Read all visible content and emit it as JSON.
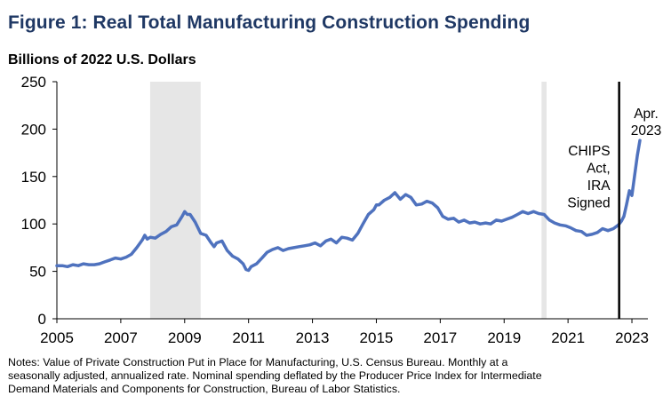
{
  "title": "Figure 1: Real Total Manufacturing Construction Spending",
  "subtitle": "Billions of 2022 U.S. Dollars",
  "notes": [
    "Notes: Value of Private Construction Put in Place for Manufacturing, U.S. Census Bureau. Monthly at a",
    "seasonally adjusted, annualized rate. Nominal spending deflated by the Producer Price Index for Intermediate",
    "Demand Materials and Components for Construction, Bureau of Labor Statistics."
  ],
  "colors": {
    "line": "#4f72be",
    "recession": "#e6e6e6",
    "title": "#1f3864"
  },
  "chart_data": {
    "type": "line",
    "title": "Figure 1: Real Total Manufacturing Construction Spending",
    "ylabel": "Billions of 2022 U.S. Dollars",
    "xlim": [
      2005.0,
      2023.5
    ],
    "ylim": [
      0,
      250
    ],
    "yticks": [
      0,
      50,
      100,
      150,
      200,
      250
    ],
    "xticks": [
      2005,
      2007,
      2009,
      2011,
      2013,
      2015,
      2017,
      2019,
      2021,
      2023
    ],
    "xtick_labels": [
      "2005",
      "2007",
      "2009",
      "2011",
      "2013",
      "2015",
      "2017",
      "2019",
      "2021",
      "2023"
    ],
    "grid": false,
    "legend": "none",
    "recession_shading": [
      [
        2007.92,
        2009.5
      ],
      [
        2020.17,
        2020.33
      ]
    ],
    "vline": {
      "x": 2022.6,
      "label": [
        "CHIPS",
        "Act,",
        "IRA",
        "Signed"
      ]
    },
    "endpoint_label": [
      "Apr.",
      "2023"
    ],
    "series": [
      {
        "x": [
          2005.0,
          2005.17,
          2005.33,
          2005.5,
          2005.67,
          2005.83,
          2006.0,
          2006.17,
          2006.33,
          2006.5,
          2006.67,
          2006.83,
          2007.0,
          2007.17,
          2007.33,
          2007.5,
          2007.67,
          2007.75,
          2007.83,
          2007.92,
          2008.08,
          2008.25,
          2008.42,
          2008.58,
          2008.75,
          2008.92,
          2009.0,
          2009.08,
          2009.17,
          2009.33,
          2009.5,
          2009.67,
          2009.83,
          2009.92,
          2010.0,
          2010.17,
          2010.33,
          2010.5,
          2010.67,
          2010.83,
          2010.92,
          2011.0,
          2011.08,
          2011.25,
          2011.42,
          2011.58,
          2011.75,
          2011.92,
          2012.08,
          2012.25,
          2012.42,
          2012.58,
          2012.75,
          2012.92,
          2013.08,
          2013.25,
          2013.42,
          2013.58,
          2013.75,
          2013.92,
          2014.08,
          2014.25,
          2014.42,
          2014.58,
          2014.75,
          2014.92,
          2015.0,
          2015.08,
          2015.25,
          2015.42,
          2015.58,
          2015.75,
          2015.92,
          2016.08,
          2016.25,
          2016.42,
          2016.58,
          2016.75,
          2016.92,
          2017.08,
          2017.25,
          2017.42,
          2017.58,
          2017.75,
          2017.92,
          2018.08,
          2018.25,
          2018.42,
          2018.58,
          2018.75,
          2018.92,
          2019.08,
          2019.25,
          2019.42,
          2019.58,
          2019.75,
          2019.92,
          2020.08,
          2020.25,
          2020.42,
          2020.58,
          2020.75,
          2020.92,
          2021.08,
          2021.25,
          2021.42,
          2021.58,
          2021.75,
          2021.92,
          2022.08,
          2022.25,
          2022.42,
          2022.58,
          2022.67,
          2022.75,
          2022.83,
          2022.92,
          2023.0,
          2023.08,
          2023.17,
          2023.25
        ],
        "values": [
          56,
          56,
          55,
          57,
          56,
          58,
          57,
          57,
          58,
          60,
          62,
          64,
          63,
          65,
          68,
          75,
          83,
          88,
          84,
          86,
          85,
          89,
          92,
          97,
          99,
          108,
          113,
          110,
          110,
          102,
          90,
          88,
          80,
          76,
          80,
          82,
          72,
          66,
          63,
          58,
          52,
          51,
          55,
          58,
          64,
          70,
          73,
          75,
          72,
          74,
          75,
          76,
          77,
          78,
          80,
          77,
          82,
          84,
          80,
          86,
          85,
          83,
          90,
          100,
          110,
          115,
          120,
          120,
          125,
          128,
          133,
          126,
          131,
          128,
          120,
          121,
          124,
          122,
          117,
          108,
          105,
          106,
          102,
          104,
          101,
          102,
          100,
          101,
          100,
          104,
          103,
          105,
          107,
          110,
          113,
          111,
          113,
          111,
          110,
          104,
          101,
          99,
          98,
          96,
          93,
          92,
          88,
          89,
          91,
          95,
          93,
          95,
          99,
          103,
          108,
          120,
          135,
          130,
          150,
          172,
          188
        ]
      }
    ]
  }
}
